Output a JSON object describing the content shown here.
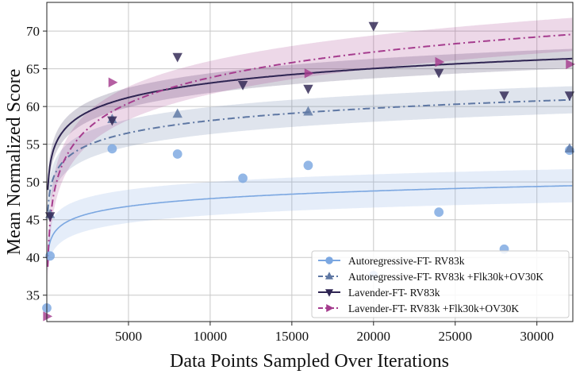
{
  "chart_data": {
    "type": "scatter",
    "xlabel": "Data Points Sampled Over Iterations",
    "ylabel": "Mean Normalized Score",
    "xlim": [
      0,
      32200
    ],
    "ylim": [
      31.5,
      73.8
    ],
    "xticks": [
      5000,
      10000,
      15000,
      20000,
      25000,
      30000
    ],
    "yticks": [
      35,
      40,
      45,
      50,
      55,
      60,
      65,
      70
    ],
    "grid": true,
    "legend_position": "bottom-right",
    "series": [
      {
        "name": "Autoregressive-FT- RV83k",
        "color": "#7BA7E1",
        "marker": "circle",
        "line_style": "solid",
        "points": [
          [
            0,
            33.3
          ],
          [
            200,
            40.2
          ],
          [
            4000,
            54.4
          ],
          [
            8000,
            53.7
          ],
          [
            12000,
            50.5
          ],
          [
            16000,
            52.2
          ],
          [
            20000,
            37.6
          ],
          [
            24000,
            46.0
          ],
          [
            28000,
            41.1
          ],
          [
            32000,
            54.2
          ]
        ],
        "fit": {
          "a": 34.3,
          "b": 1.465,
          "band": 2.2
        }
      },
      {
        "name": "Autoregressive-FT- RV83k +Flk30k+OV30K",
        "color": "#5E77A3",
        "marker": "triangle-up",
        "line_style": "dashdot",
        "points": [
          [
            200,
            45.7
          ],
          [
            4000,
            58.3
          ],
          [
            8000,
            59.0
          ],
          [
            16000,
            59.3
          ],
          [
            32000,
            54.4
          ]
        ],
        "fit": {
          "a": 36.4,
          "b": 2.36,
          "band": 1.8
        }
      },
      {
        "name": "Lavender-FT- RV83k",
        "color": "#2E2452",
        "marker": "triangle-down",
        "line_style": "solid",
        "points": [
          [
            200,
            45.5
          ],
          [
            4000,
            58.2
          ],
          [
            8000,
            66.6
          ],
          [
            12000,
            62.9
          ],
          [
            16000,
            62.4
          ],
          [
            20000,
            70.7
          ],
          [
            24000,
            64.5
          ],
          [
            28000,
            61.5
          ],
          [
            32000,
            61.5
          ]
        ],
        "fit": {
          "a": 37.6,
          "b": 2.77,
          "band": 1.3
        }
      },
      {
        "name": "Lavender-FT- RV83k +Flk30k+OV30K",
        "color": "#A53C8E",
        "marker": "triangle-right",
        "line_style": "dashdot",
        "points": [
          [
            0,
            32.2
          ],
          [
            4000,
            63.2
          ],
          [
            16000,
            64.4
          ],
          [
            24000,
            65.9
          ],
          [
            32000,
            65.6
          ]
        ],
        "fit": {
          "a": 18.7,
          "b": 4.9,
          "band": 2.2
        }
      }
    ]
  }
}
